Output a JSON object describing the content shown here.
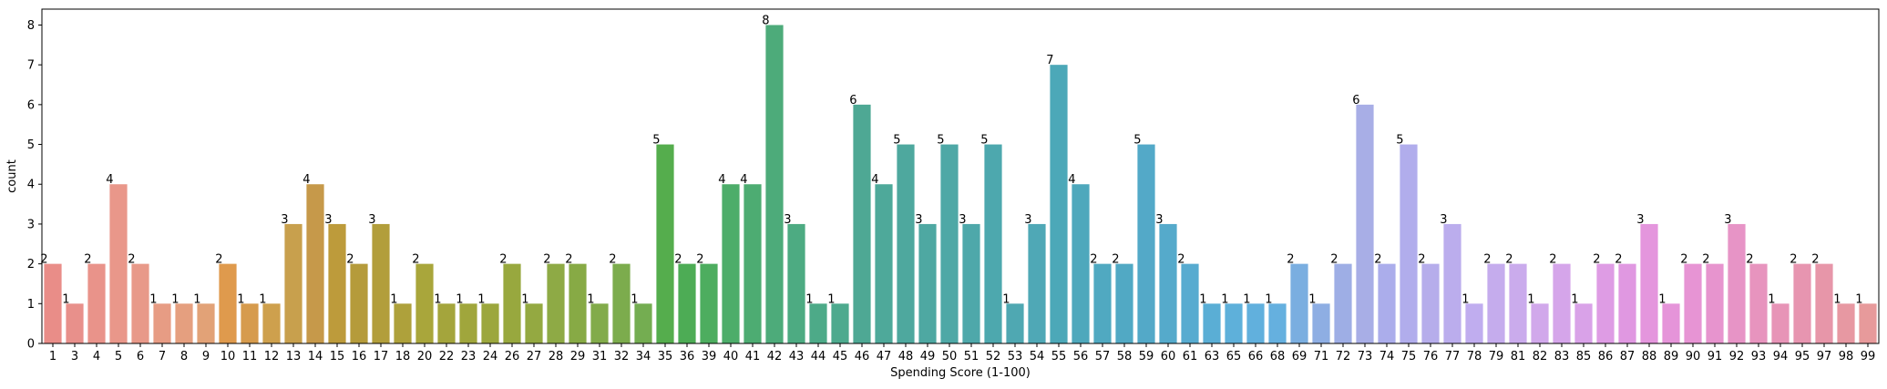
{
  "chart_data": {
    "type": "bar",
    "title": "",
    "xlabel": "Spending Score (1-100)",
    "ylabel": "count",
    "ylim": [
      0,
      8.4
    ],
    "yticks": [
      0,
      1,
      2,
      3,
      4,
      5,
      6,
      7,
      8
    ],
    "grid": false,
    "legend": "none",
    "data_labels": true,
    "categories": [
      "1",
      "3",
      "4",
      "5",
      "6",
      "7",
      "8",
      "9",
      "10",
      "11",
      "12",
      "13",
      "14",
      "15",
      "16",
      "17",
      "18",
      "20",
      "22",
      "23",
      "24",
      "26",
      "27",
      "28",
      "29",
      "31",
      "32",
      "34",
      "35",
      "36",
      "39",
      "40",
      "41",
      "42",
      "43",
      "44",
      "45",
      "46",
      "47",
      "48",
      "49",
      "50",
      "51",
      "52",
      "53",
      "54",
      "55",
      "56",
      "57",
      "58",
      "59",
      "60",
      "61",
      "63",
      "65",
      "66",
      "68",
      "69",
      "71",
      "72",
      "73",
      "74",
      "75",
      "76",
      "77",
      "78",
      "79",
      "81",
      "82",
      "83",
      "85",
      "86",
      "87",
      "88",
      "89",
      "90",
      "91",
      "92",
      "93",
      "94",
      "95",
      "97",
      "98",
      "99"
    ],
    "values": [
      2,
      1,
      2,
      4,
      2,
      1,
      1,
      1,
      2,
      1,
      1,
      3,
      4,
      3,
      2,
      3,
      1,
      2,
      1,
      1,
      1,
      2,
      1,
      2,
      2,
      1,
      2,
      1,
      5,
      2,
      2,
      4,
      4,
      8,
      3,
      1,
      1,
      6,
      4,
      5,
      3,
      5,
      3,
      5,
      1,
      3,
      7,
      4,
      2,
      2,
      5,
      3,
      2,
      1,
      1,
      1,
      1,
      2,
      1,
      2,
      6,
      2,
      5,
      2,
      3,
      1,
      2,
      2,
      1,
      2,
      1,
      2,
      2,
      3,
      1,
      2,
      2,
      3,
      2,
      1,
      2,
      2,
      1,
      1
    ],
    "colors": [
      "#e98d88",
      "#e8908b",
      "#e9938a",
      "#e9978a",
      "#e89989",
      "#e79c84",
      "#e59f7f",
      "#e2a277",
      "#df9a4d",
      "#d69b4d",
      "#cea04d",
      "#c8a04d",
      "#c6994a",
      "#bd9b3b",
      "#b59b3b",
      "#b29e3b",
      "#aea13b",
      "#a9a63b",
      "#a4a53c",
      "#a0a63c",
      "#9ca73d",
      "#98a83e",
      "#94a941",
      "#8eaa45",
      "#87aa45",
      "#82ab4a",
      "#7cac4d",
      "#74ad51",
      "#55ad4d",
      "#4dac55",
      "#4dad5f",
      "#4dad6a",
      "#4dac72",
      "#4dab7a",
      "#4dab82",
      "#4daa88",
      "#4daa8e",
      "#4ea894",
      "#4ea99a",
      "#4ea89e",
      "#4ea8a2",
      "#4ea8a6",
      "#4ea8aa",
      "#4da8ae",
      "#4fa8b2",
      "#4fa8b6",
      "#4ca8b8",
      "#4ea8bc",
      "#50a9c1",
      "#51a9c4",
      "#53a9c8",
      "#55aacb",
      "#57abd0",
      "#5aaed5",
      "#5eb0da",
      "#61b0dd",
      "#65b0df",
      "#7aaee0",
      "#8eaee3",
      "#9eaee5",
      "#a8aee6",
      "#abadeb",
      "#b1adec",
      "#b6adeb",
      "#bbaded",
      "#c0adef",
      "#c5aced",
      "#caabec",
      "#d1a8eb",
      "#d5a5ea",
      "#d9a2e8",
      "#de9ce4",
      "#e098e1",
      "#e496dd",
      "#e594d9",
      "#e794d4",
      "#e794ce",
      "#e794c6",
      "#e794be",
      "#e794b7",
      "#e795b0",
      "#e796a9",
      "#e798a2",
      "#e79a9b"
    ]
  }
}
